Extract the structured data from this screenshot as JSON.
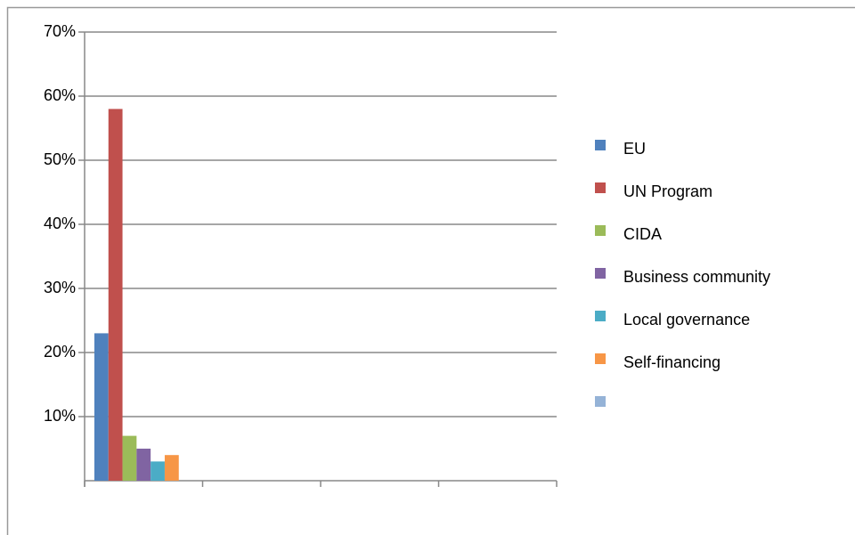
{
  "chart_data": {
    "type": "bar",
    "categories": [
      null,
      null,
      null,
      null
    ],
    "series": [
      {
        "name": "EU",
        "color": "#4f81bd",
        "values": [
          23,
          null,
          null,
          null
        ]
      },
      {
        "name": "UN Program",
        "color": "#c0504d",
        "values": [
          58,
          null,
          null,
          null
        ]
      },
      {
        "name": "CIDA",
        "color": "#9bbb59",
        "values": [
          7,
          null,
          null,
          null
        ]
      },
      {
        "name": "Business community",
        "color": "#8064a2",
        "values": [
          5,
          null,
          null,
          null
        ]
      },
      {
        "name": "Local governance",
        "color": "#4bacc6",
        "values": [
          3,
          null,
          null,
          null
        ]
      },
      {
        "name": "Self-financing",
        "color": "#f79646",
        "values": [
          4,
          null,
          null,
          null
        ]
      },
      {
        "color": "#95b3d7",
        "values": [
          null,
          null,
          null,
          null
        ]
      }
    ],
    "ylim": [
      0,
      70
    ],
    "yticks": [
      {
        "value": 10,
        "label": "10%"
      },
      {
        "value": 20,
        "label": "20%"
      },
      {
        "value": 30,
        "label": "30%"
      },
      {
        "value": 40,
        "label": "40%"
      },
      {
        "value": 50,
        "label": "50%"
      },
      {
        "value": 60,
        "label": "60%"
      },
      {
        "value": 70,
        "label": "70%"
      }
    ],
    "grid": true,
    "legend": "right"
  }
}
